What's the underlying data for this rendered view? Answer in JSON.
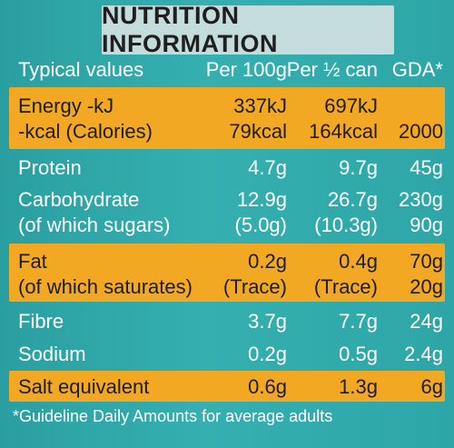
{
  "title": "NUTRITION INFORMATION",
  "headers": {
    "label": "Typical values",
    "per100": "Per 100g",
    "perHalf": "Per ½ can",
    "gda": "GDA*"
  },
  "rows": {
    "energy": {
      "label1": "Energy -kJ",
      "label2": "-kcal (Calories)",
      "per100_1": "337kJ",
      "per100_2": "79kcal",
      "perHalf_1": "697kJ",
      "perHalf_2": "164kcal",
      "gda_2": "2000"
    },
    "protein": {
      "label": "Protein",
      "per100": "4.7g",
      "perHalf": "9.7g",
      "gda": "45g"
    },
    "carbohydrate": {
      "label1": "Carbohydrate",
      "label2": "(of which sugars)",
      "per100_1": "12.9g",
      "per100_2": "(5.0g)",
      "perHalf_1": "26.7g",
      "perHalf_2": "(10.3g)",
      "gda_1": "230g",
      "gda_2": "90g"
    },
    "fat": {
      "label1": "Fat",
      "label2": "(of which saturates)",
      "per100_1": "0.2g",
      "per100_2": "(Trace)",
      "perHalf_1": "0.4g",
      "perHalf_2": "(Trace)",
      "gda_1": "70g",
      "gda_2": "20g"
    },
    "fibre": {
      "label": "Fibre",
      "per100": "3.7g",
      "perHalf": "7.7g",
      "gda": "24g"
    },
    "sodium": {
      "label": "Sodium",
      "per100": "0.2g",
      "perHalf": "0.5g",
      "gda": "2.4g"
    },
    "salt": {
      "label": "Salt equivalent",
      "per100": "0.6g",
      "perHalf": "1.3g",
      "gda": "6g"
    }
  },
  "footnote": "*Guideline Daily Amounts for average adults",
  "colors": {
    "teal": "#2ea5a7",
    "orange": "#f2a822",
    "titleBg": "#c4dcdb"
  }
}
